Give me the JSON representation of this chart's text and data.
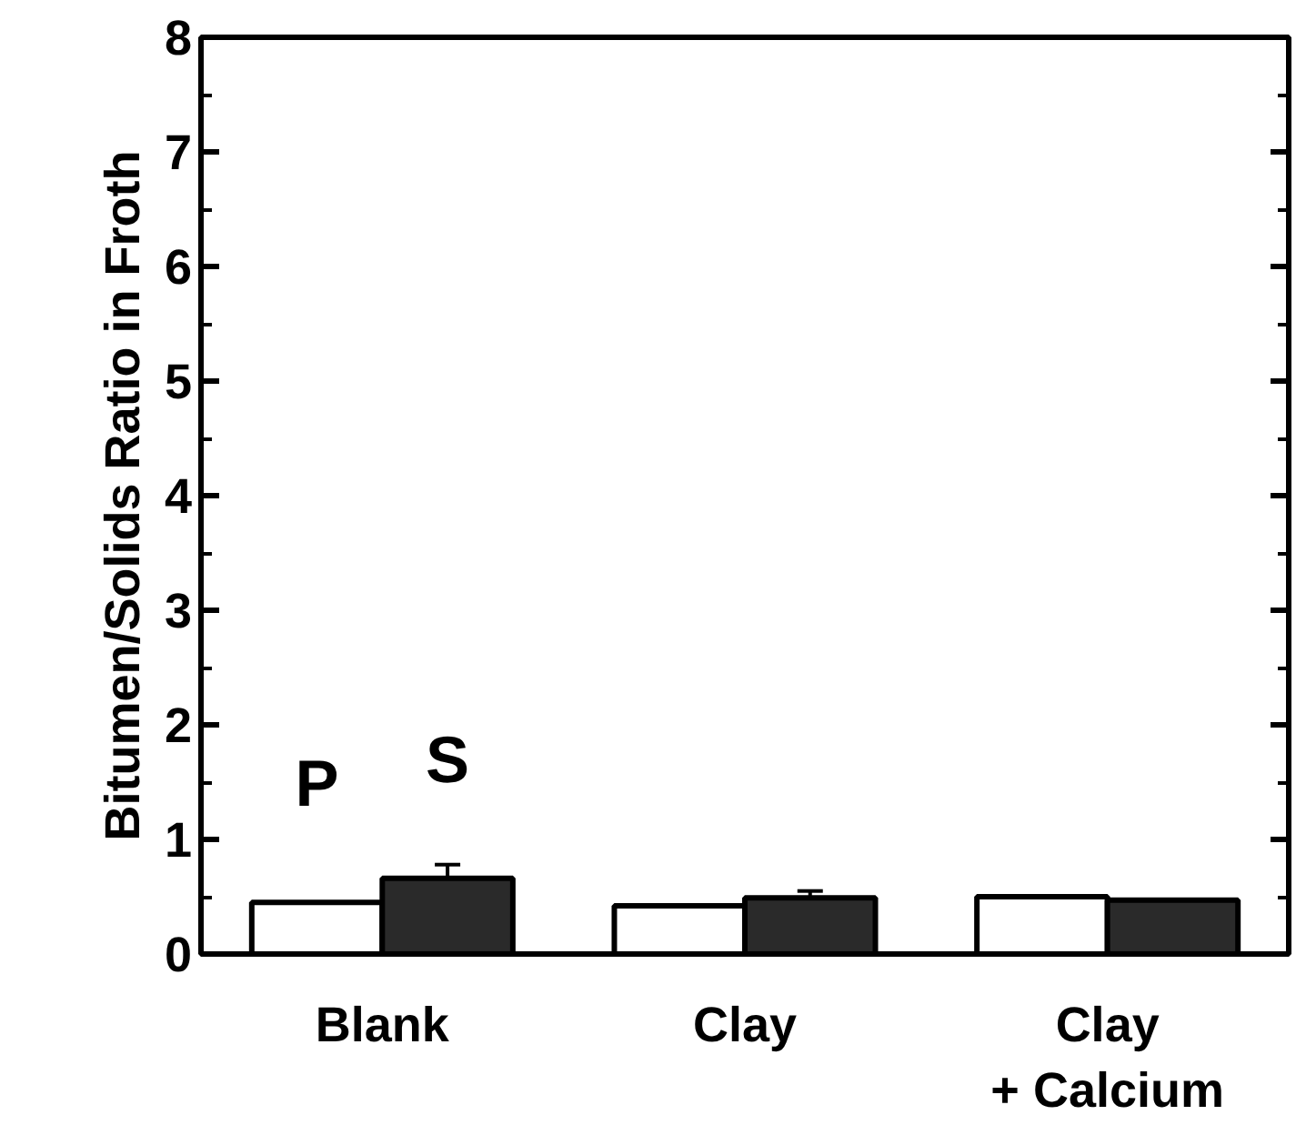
{
  "chart_data": {
    "type": "bar",
    "ylabel": "Bitumen/Solids Ratio in Froth",
    "categories": [
      "Blank",
      "Clay",
      "Clay\n+ Calcium"
    ],
    "series": [
      {
        "name": "P",
        "color": "#ffffff",
        "values": [
          0.45,
          0.42,
          0.5
        ]
      },
      {
        "name": "S",
        "color": "#2a2a2a",
        "values": [
          0.66,
          0.49,
          0.47
        ],
        "errors": [
          0.12,
          0.06,
          null
        ]
      }
    ],
    "ylim": [
      0,
      8
    ],
    "yticks": [
      0,
      1,
      2,
      3,
      4,
      5,
      6,
      7,
      8
    ],
    "grid": false
  }
}
